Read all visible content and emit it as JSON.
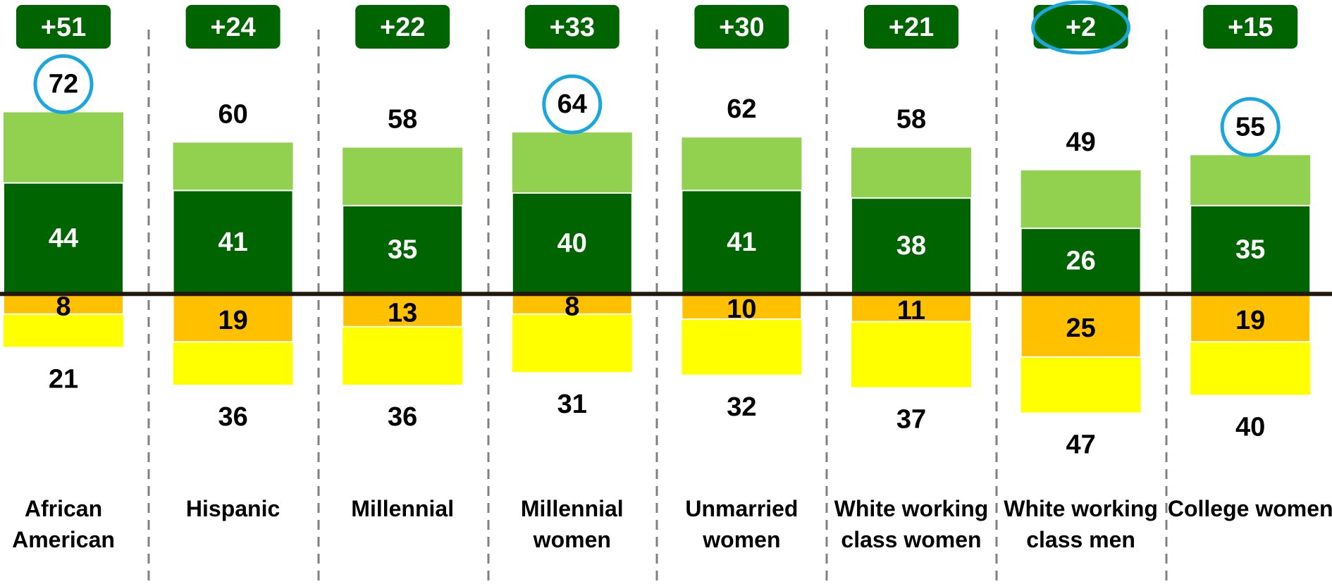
{
  "chart_data": {
    "type": "diverging_bar",
    "categories": [
      [
        "African",
        "American"
      ],
      [
        "Hispanic"
      ],
      [
        "Millennial"
      ],
      [
        "Millennial",
        "women"
      ],
      [
        "Unmarried",
        "women"
      ],
      [
        "White working",
        "class women"
      ],
      [
        "White working",
        "class men"
      ],
      [
        "College women"
      ]
    ],
    "net": {
      "color": "#006400",
      "values": [
        51,
        24,
        22,
        33,
        30,
        21,
        2,
        15
      ],
      "value_labels": [
        "+51",
        "+24",
        "+22",
        "+33",
        "+30",
        "+21",
        "+2",
        "+15"
      ]
    },
    "series": [
      {
        "color": "#92d050",
        "values": [
          72,
          60,
          58,
          64,
          62,
          58,
          49,
          55
        ]
      },
      {
        "color": "#006400",
        "values": [
          44,
          41,
          35,
          40,
          41,
          38,
          26,
          35
        ]
      },
      {
        "color": "#ffc000",
        "values": [
          -8,
          -19,
          -13,
          -8,
          -10,
          -11,
          -25,
          -19
        ],
        "value_labels": [
          "8",
          "19",
          "13",
          "8",
          "10",
          "11",
          "25",
          "19"
        ]
      },
      {
        "color": "#ffff00",
        "values": [
          -21,
          -36,
          -36,
          -31,
          -32,
          -37,
          -47,
          -40
        ],
        "value_labels": [
          "21",
          "36",
          "36",
          "31",
          "32",
          "37",
          "47",
          "40"
        ]
      }
    ],
    "circled_totals": [
      0,
      3,
      7
    ],
    "circled_net": [
      6
    ],
    "highlight_color": "#1aa7df",
    "ylim": [
      -60,
      90
    ]
  }
}
